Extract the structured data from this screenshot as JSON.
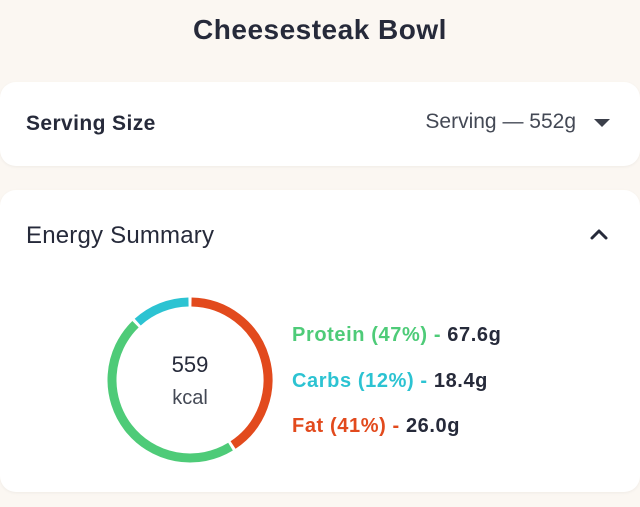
{
  "header": {
    "title": "Cheesesteak Bowl"
  },
  "serving": {
    "label": "Serving Size",
    "selected": "Serving — 552g"
  },
  "energy": {
    "title": "Energy Summary",
    "calories": "559",
    "unit": "kcal",
    "macros": [
      {
        "name": "Protein",
        "percent_label": "(47%)",
        "separator": "-",
        "amount": "67.6g",
        "percent": 47,
        "color": "#4ecb78"
      },
      {
        "name": "Carbs",
        "percent_label": "(12%)",
        "separator": "-",
        "amount": "18.4g",
        "percent": 12,
        "color": "#2cc3d2"
      },
      {
        "name": "Fat",
        "percent_label": "(41%)",
        "separator": "-",
        "amount": "26.0g",
        "percent": 41,
        "color": "#e24a1d"
      }
    ]
  },
  "icons": {
    "dropdown": "chevron-down-icon",
    "collapse": "chevron-up-icon"
  }
}
